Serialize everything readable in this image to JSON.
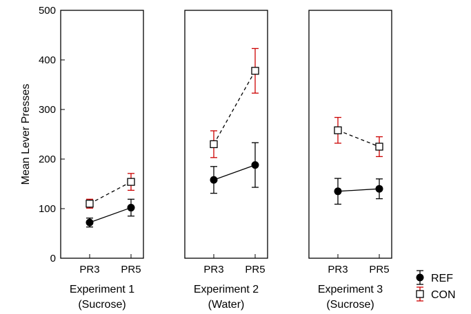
{
  "chart_data": {
    "type": "line",
    "ylabel": "Mean Lever Presses",
    "ylim": [
      0,
      500
    ],
    "yticks": [
      0,
      100,
      200,
      300,
      400,
      500
    ],
    "grid": false,
    "legend_placement": "bottom-right",
    "colors": {
      "REF": "#000000",
      "CON_marker": "#000000",
      "CON_error": "#cc0000"
    },
    "legend": [
      {
        "name": "REF",
        "marker": "filled-circle",
        "line": "solid"
      },
      {
        "name": "CON",
        "marker": "open-square",
        "line": "dashed"
      }
    ],
    "panels": [
      {
        "label_line1": "Experiment 1",
        "label_line2": "(Sucrose)",
        "categories": [
          "PR3",
          "PR5"
        ],
        "series": [
          {
            "name": "REF",
            "values": [
              72,
              102
            ],
            "errors": [
              9,
              17
            ]
          },
          {
            "name": "CON",
            "values": [
              110,
              154
            ],
            "errors": [
              9,
              17
            ]
          }
        ]
      },
      {
        "label_line1": "Experiment 2",
        "label_line2": "(Water)",
        "categories": [
          "PR3",
          "PR5"
        ],
        "series": [
          {
            "name": "REF",
            "values": [
              158,
              188
            ],
            "errors": [
              27,
              45
            ]
          },
          {
            "name": "CON",
            "values": [
              230,
              378
            ],
            "errors": [
              27,
              45
            ]
          }
        ]
      },
      {
        "label_line1": "Experiment 3",
        "label_line2": "(Sucrose)",
        "categories": [
          "PR3",
          "PR5"
        ],
        "series": [
          {
            "name": "REF",
            "values": [
              135,
              140
            ],
            "errors": [
              26,
              20
            ]
          },
          {
            "name": "CON",
            "values": [
              258,
              225
            ],
            "errors": [
              26,
              20
            ]
          }
        ]
      }
    ]
  }
}
